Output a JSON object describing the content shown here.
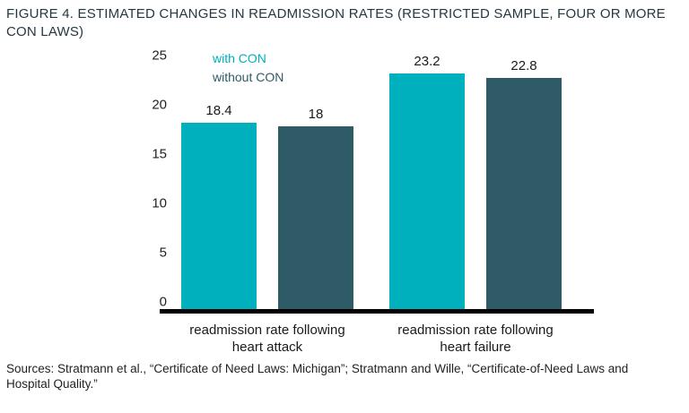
{
  "title": "FIGURE 4. ESTIMATED CHANGES IN READMISSION RATES (RESTRICTED SAMPLE, FOUR OR MORE CON LAWS)",
  "title_lines": [
    "FIGURE 4. ESTIMATED CHANGES IN READMISSION RATES (RESTRICTED SAMPLE, FOUR OR MORE",
    "CON LAWS)"
  ],
  "source": "Sources: Stratmann et al., “Certificate of Need Laws: Michigan”; Stratmann and Wille, “Certificate-of-Need Laws and Hospital Quality.”",
  "source_lines": [
    "Sources: Stratmann et al., “Certificate of Need Laws: Michigan”; Stratmann and Wille, “Certificate-of-Need Laws and",
    "Hospital Quality.”"
  ],
  "colors": {
    "with_con": "#00b0bc",
    "without_con": "#2e5b66",
    "axis_line": "#000000",
    "text": "#231f20",
    "title_text": "#253842"
  },
  "chart_data": {
    "type": "bar",
    "categories": [
      "readmission rate following heart attack",
      "readmission rate following heart failure"
    ],
    "category_lines": [
      [
        "readmission rate following",
        "heart attack"
      ],
      [
        "readmission rate following",
        "heart failure"
      ]
    ],
    "series": [
      {
        "name": "with CON",
        "values": [
          18.4,
          23.2
        ],
        "color": "#00b0bc"
      },
      {
        "name": "without CON",
        "values": [
          18,
          22.8
        ],
        "color": "#2e5b66"
      }
    ],
    "data_labels": [
      "18.4",
      "18",
      "23.2",
      "22.8"
    ],
    "ylim": [
      0,
      25
    ],
    "yticks": [
      0,
      5,
      10,
      15,
      20,
      25
    ],
    "xlabel": "",
    "ylabel": "",
    "grid": false,
    "legend_position": "top-left-inside"
  }
}
